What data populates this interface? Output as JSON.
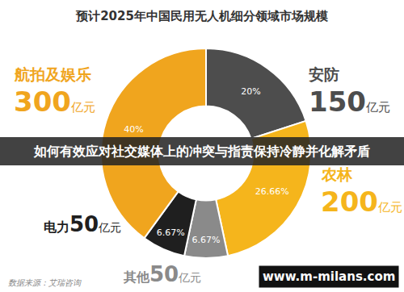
{
  "chart_data": {
    "type": "pie",
    "title": "预计2025年中国民用无人机细分领域市场规模",
    "categories": [
      "安防",
      "农林",
      "其他",
      "电力",
      "航拍及娱乐"
    ],
    "values": [
      20,
      26.66,
      6.67,
      6.67,
      40
    ],
    "value_labels": [
      "20%",
      "26.66%",
      "6.67%",
      "6.67%",
      "40%"
    ],
    "amounts": [
      150,
      200,
      50,
      50,
      300
    ],
    "amount_unit": "亿元",
    "colors": [
      "#4d4d4d",
      "#f5b51c",
      "#8a8a8a",
      "#1f1f1f",
      "#f0a51e"
    ],
    "data_labels": true,
    "annotations": [
      "如何有效应对社交媒体上的冲突与指责保持冷静并化解矛盾",
      "数据来源：艾瑞咨询",
      "www.m-milans.com"
    ]
  }
}
